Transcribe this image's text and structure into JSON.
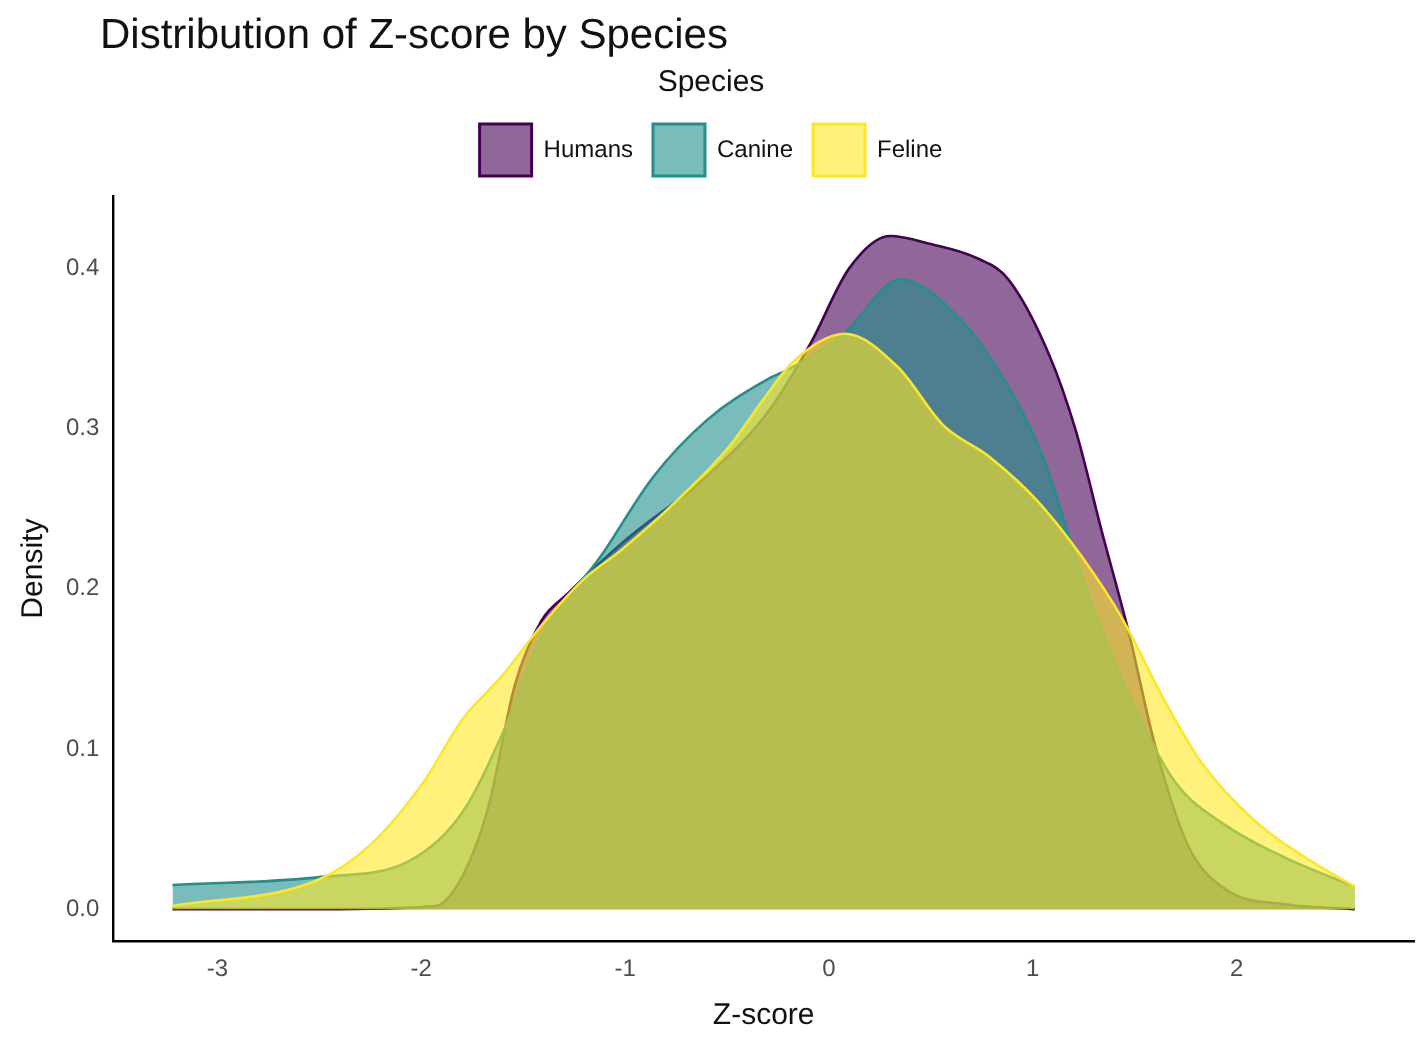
{
  "chart_data": {
    "type": "area",
    "title": "Distribution of Z-score by Species",
    "xlabel": "Z-score",
    "ylabel": "Density",
    "legend_title": "Species",
    "legend": "top",
    "grid": false,
    "marker": "none",
    "xlim": [
      -3.51,
      2.87
    ],
    "xticks": [
      -3,
      -2,
      -1,
      0,
      1,
      2
    ],
    "ylim": [
      -0.02,
      0.445
    ],
    "yticks": [
      {
        "value": 0,
        "label": "0.0"
      },
      0.1,
      0.2,
      0.3,
      0.4
    ],
    "series": [
      {
        "name": "Humans",
        "color": "#440154",
        "x": [
          -3.22,
          -2.5,
          -1.93,
          -1.8,
          -1.67,
          -1.54,
          -1.41,
          -1.28,
          -1.0,
          -0.6,
          -0.3,
          -0.09,
          0.1,
          0.3,
          0.5,
          0.73,
          0.88,
          1.08,
          1.21,
          1.34,
          1.47,
          1.6,
          1.76,
          1.95,
          2.24,
          2.58
        ],
        "values": [
          0,
          0,
          0.002,
          0.02,
          0.064,
          0.14,
          0.18,
          0.197,
          0.23,
          0.27,
          0.31,
          0.353,
          0.4,
          0.42,
          0.415,
          0.406,
          0.393,
          0.346,
          0.299,
          0.235,
          0.173,
          0.102,
          0.04,
          0.012,
          0.003,
          0
        ]
      },
      {
        "name": "Canine",
        "color": "#21908c",
        "x": [
          -3.22,
          -2.5,
          -2.06,
          -1.8,
          -1.6,
          -1.41,
          -1.12,
          -0.86,
          -0.6,
          -0.31,
          -0.18,
          0.08,
          0.35,
          0.63,
          0.88,
          1.05,
          1.21,
          1.34,
          1.5,
          1.7,
          1.95,
          2.24,
          2.58
        ],
        "values": [
          0.015,
          0.02,
          0.03,
          0.06,
          0.11,
          0.17,
          0.22,
          0.27,
          0.305,
          0.33,
          0.338,
          0.36,
          0.393,
          0.37,
          0.326,
          0.282,
          0.22,
          0.173,
          0.126,
          0.079,
          0.052,
          0.032,
          0.014
        ]
      },
      {
        "name": "Feline",
        "color": "#fde725",
        "x": [
          -3.22,
          -2.51,
          -2.25,
          -1.99,
          -1.8,
          -1.6,
          -1.41,
          -1.21,
          -1.02,
          -0.77,
          -0.5,
          -0.31,
          -0.18,
          0.08,
          0.34,
          0.56,
          0.79,
          1.02,
          1.24,
          1.44,
          1.63,
          1.83,
          2.09,
          2.34,
          2.58
        ],
        "values": [
          0.002,
          0.018,
          0.04,
          0.079,
          0.118,
          0.146,
          0.177,
          0.205,
          0.224,
          0.252,
          0.287,
          0.32,
          0.341,
          0.359,
          0.338,
          0.302,
          0.282,
          0.255,
          0.22,
          0.181,
          0.134,
          0.091,
          0.055,
          0.032,
          0.014
        ]
      }
    ]
  }
}
